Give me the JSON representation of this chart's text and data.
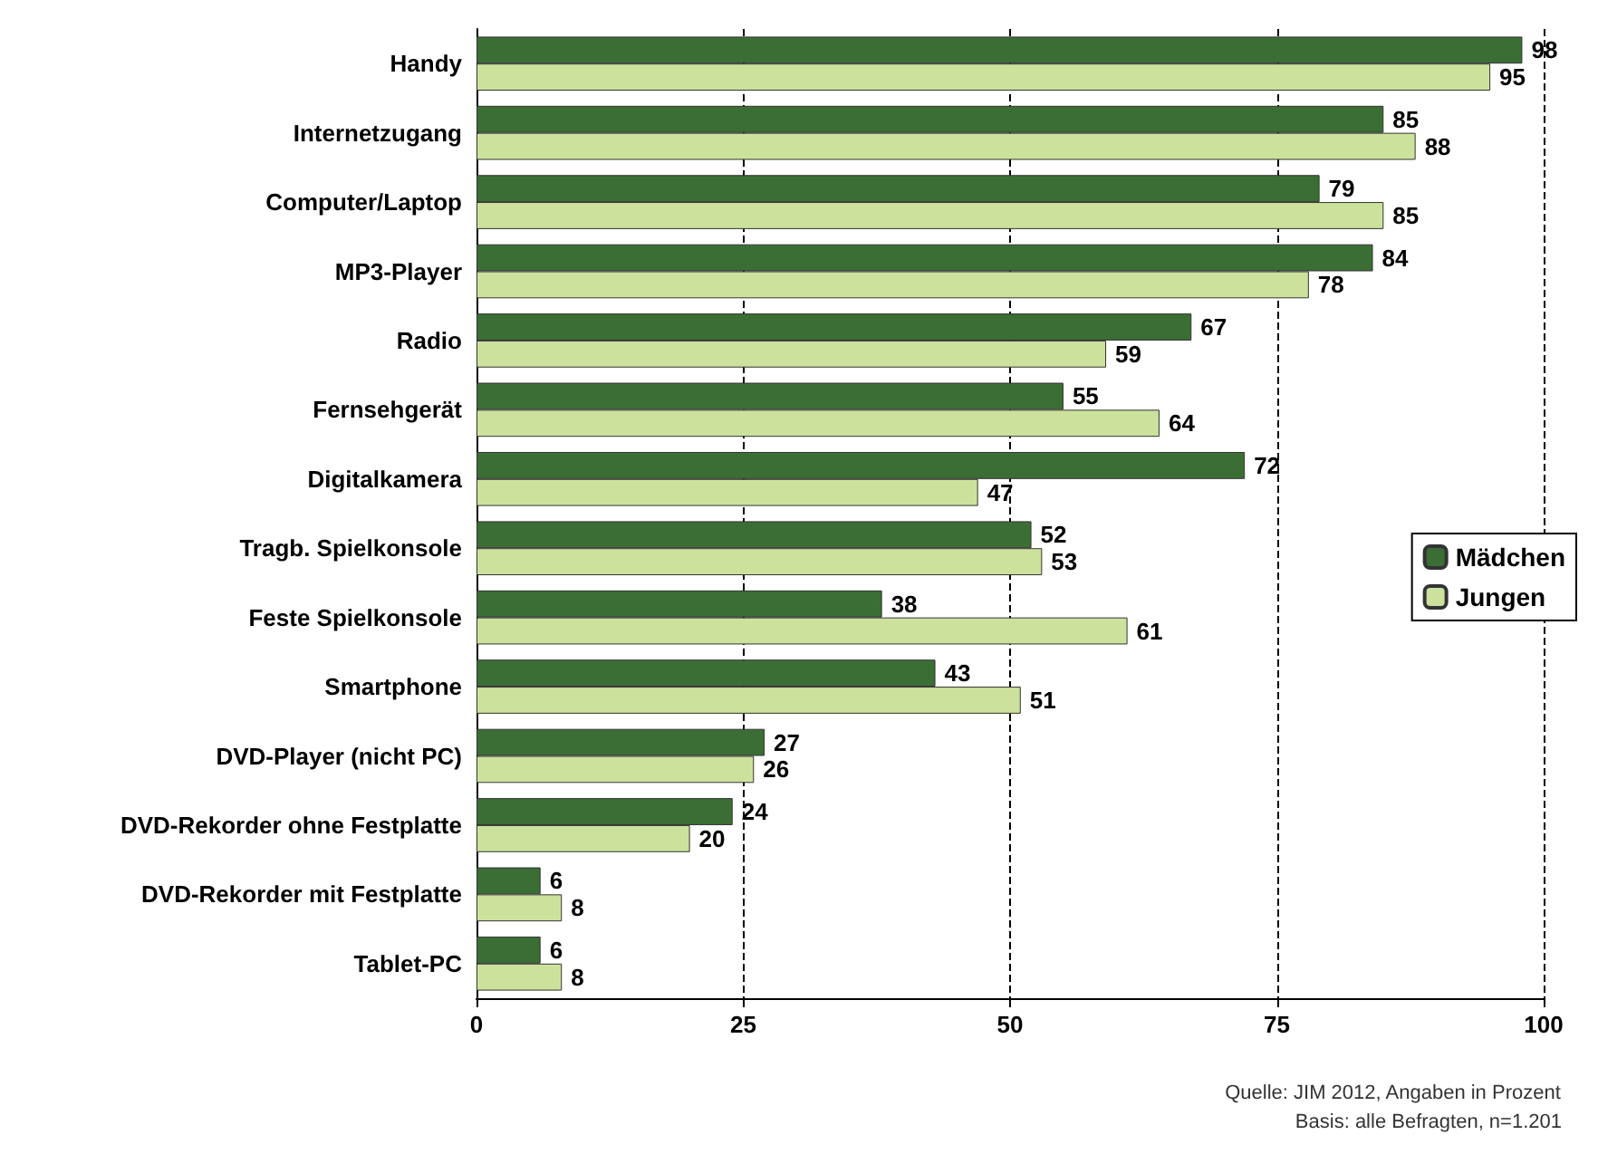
{
  "chart_data": {
    "type": "bar",
    "orientation": "horizontal",
    "categories": [
      "Handy",
      "Internetzugang",
      "Computer/Laptop",
      "MP3-Player",
      "Radio",
      "Fernsehgerät",
      "Digitalkamera",
      "Tragb. Spielkonsole",
      "Feste Spielkonsole",
      "Smartphone",
      "DVD-Player (nicht PC)",
      "DVD-Rekorder ohne Festplatte",
      "DVD-Rekorder mit Festplatte",
      "Tablet-PC"
    ],
    "series": [
      {
        "name": "Mädchen",
        "color": "#3b6e35",
        "values": [
          98,
          85,
          79,
          84,
          67,
          55,
          72,
          52,
          38,
          43,
          27,
          24,
          6,
          6
        ]
      },
      {
        "name": "Jungen",
        "color": "#cce29c",
        "values": [
          95,
          88,
          85,
          78,
          59,
          64,
          47,
          53,
          61,
          51,
          26,
          20,
          8,
          8
        ]
      }
    ],
    "xlim": [
      0,
      100
    ],
    "xticks": [
      0,
      25,
      50,
      75,
      100
    ],
    "grid": "x",
    "legend": "right",
    "data_labels": true,
    "annotations": [
      "Quelle: JIM 2012, Angaben in Prozent",
      "Basis: alle Befragten, n=1.201"
    ]
  }
}
